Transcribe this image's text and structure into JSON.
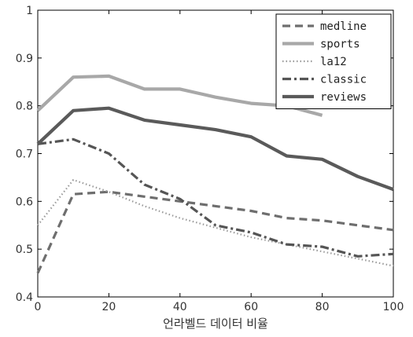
{
  "chart_data": {
    "type": "line",
    "title": "",
    "xlabel": "언라벨드 데이터 비율",
    "ylabel": "",
    "xlim": [
      0,
      100
    ],
    "ylim": [
      0.4,
      1
    ],
    "xticks": [
      "0",
      "20",
      "40",
      "60",
      "80",
      "100"
    ],
    "yticks": [
      "0.4",
      "0.5",
      "0.6",
      "0.7",
      "0.8",
      "0.9",
      "1"
    ],
    "legend_position": "top-right",
    "x": [
      0,
      10,
      20,
      30,
      40,
      50,
      60,
      70,
      80,
      90,
      100
    ],
    "series": [
      {
        "name": "medline",
        "style": "dashed",
        "color": "#6e6e6e",
        "values": [
          0.45,
          0.615,
          0.62,
          0.61,
          0.6,
          0.59,
          0.58,
          0.565,
          0.56,
          0.55,
          0.54
        ]
      },
      {
        "name": "sports",
        "style": "solid-light",
        "color": "#a8a8a8",
        "values": [
          0.79,
          0.86,
          0.862,
          0.835,
          0.835,
          0.818,
          0.805,
          0.8,
          0.78,
          null,
          null
        ]
      },
      {
        "name": "la12",
        "style": "dotted",
        "color": "#9a9a9a",
        "values": [
          0.55,
          0.645,
          0.62,
          0.59,
          0.565,
          0.545,
          0.525,
          0.51,
          0.495,
          0.48,
          0.465
        ]
      },
      {
        "name": "classic",
        "style": "dashdot",
        "color": "#555555",
        "values": [
          0.72,
          0.73,
          0.7,
          0.635,
          0.605,
          0.55,
          0.535,
          0.51,
          0.505,
          0.485,
          0.49
        ]
      },
      {
        "name": "reviews",
        "style": "solid-dark",
        "color": "#5a5a5a",
        "values": [
          0.72,
          0.79,
          0.795,
          0.77,
          0.76,
          0.75,
          0.735,
          0.695,
          0.688,
          0.652,
          0.625
        ]
      }
    ]
  }
}
